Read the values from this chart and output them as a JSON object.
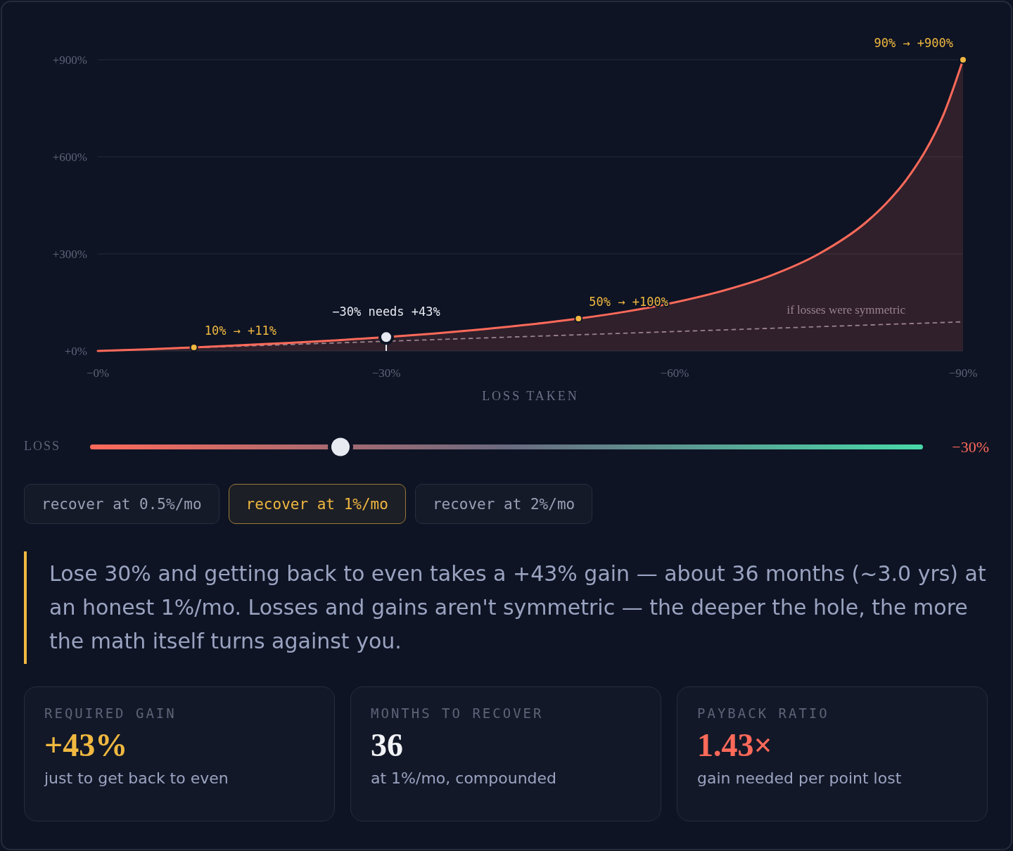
{
  "chart_data": [
    {
      "type": "area",
      "xlabel": "LOSS TAKEN",
      "xlim": [
        0,
        -90
      ],
      "ylim": [
        0,
        900
      ],
      "xticks": [
        {
          "value": 0,
          "label": "−0%"
        },
        {
          "value": -30,
          "label": "−30%"
        },
        {
          "value": -60,
          "label": "−60%"
        },
        {
          "value": -90,
          "label": "−90%"
        }
      ],
      "yticks": [
        {
          "value": 0,
          "label": "+0%"
        },
        {
          "value": 300,
          "label": "+300%"
        },
        {
          "value": 600,
          "label": "+600%"
        },
        {
          "value": 900,
          "label": "+900%"
        }
      ],
      "grid": "y",
      "series": [
        {
          "type": "line",
          "name": "if losses were symmetric",
          "color": "#8a8796",
          "line_style": "dashed",
          "x": [
            0,
            -90
          ],
          "values": [
            0,
            90
          ]
        },
        {
          "type": "area",
          "color": "#ff6a5a",
          "x": [
            0,
            -5,
            -10,
            -15,
            -20,
            -25,
            -30,
            -35,
            -40,
            -45,
            -50,
            -55,
            -60,
            -65,
            -70,
            -75,
            -80,
            -82,
            -84,
            -85,
            -86,
            -88,
            -90
          ],
          "values": [
            0,
            5,
            11,
            18,
            25,
            33,
            43,
            54,
            67,
            82,
            100,
            122,
            150,
            186,
            233,
            300,
            400,
            456,
            525,
            567,
            614,
            733,
            900
          ]
        },
        {
          "type": "scatter",
          "color": "#f0b840",
          "marker": "circle",
          "x": [
            -10,
            -50,
            -90
          ],
          "values": [
            11,
            100,
            900
          ]
        },
        {
          "type": "scatter",
          "color": "#e8eaf2",
          "marker": "circle",
          "x": [
            -30
          ],
          "values": [
            43
          ]
        }
      ],
      "annotations": [
        {
          "text": "10% → +11%",
          "x": -10,
          "y": 11
        },
        {
          "text": "−30% needs +43%",
          "x": -30,
          "y": 43
        },
        {
          "text": "50% → +100%",
          "x": -50,
          "y": 100
        },
        {
          "text": "90% → +900%",
          "x": -90,
          "y": 900
        }
      ]
    },
    {
      "type": "other",
      "annotations": [
        "LOSS",
        "−30%",
        "recover at 0.5%/mo",
        "recover at 1%/mo",
        "recover at 2%/mo"
      ]
    },
    {
      "type": "other",
      "annotations": [
        "Lose 30% and getting back to even takes a +43% gain — about 36 months (~3.0 yrs) at an honest 1%/mo. Losses and gains aren't symmetric — the deeper the hole, the more the math itself turns against you."
      ]
    },
    {
      "type": "other",
      "title": "REQUIRED GAIN",
      "annotations": [
        "+43%",
        "just to get back to even"
      ]
    },
    {
      "type": "other",
      "title": "MONTHS TO RECOVER",
      "annotations": [
        "36",
        "at 1%/mo, compounded"
      ]
    },
    {
      "type": "other",
      "title": "PAYBACK RATIO",
      "annotations": [
        "1.43×",
        "gain needed per point lost"
      ]
    }
  ]
}
